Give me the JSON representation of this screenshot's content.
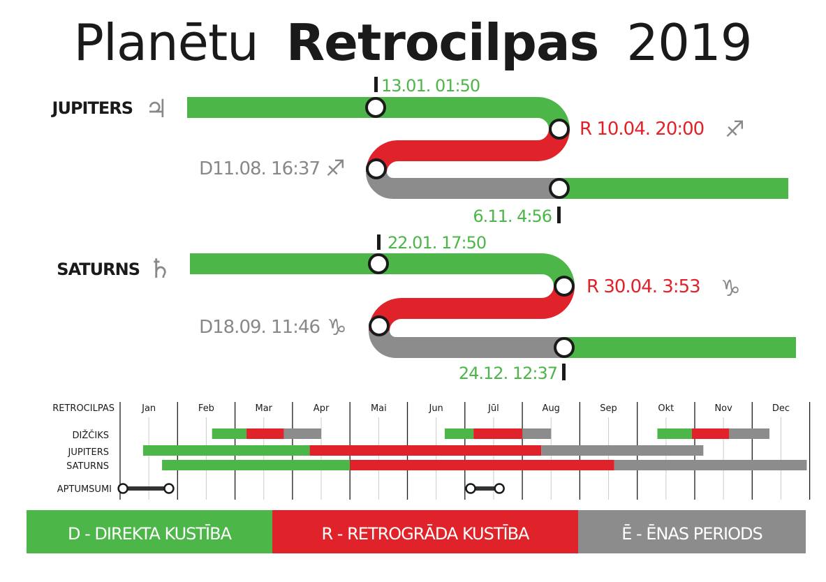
{
  "title": {
    "light": "Planētu",
    "bold": "Retrocilpas",
    "year": "2019"
  },
  "colors": {
    "direct": "#4cb648",
    "retro": "#e0222a",
    "shadow": "#8c8c8c",
    "text": "#1a1a1a",
    "muted": "#888888"
  },
  "loops": [
    {
      "name": "JUPITERS",
      "symbol": "♃",
      "start_label": "13.01. 01:50",
      "retro_label": "R 10.04. 20:00",
      "retro_sign": "♐",
      "direct_label": "D11.08. 16:37",
      "direct_sign": "♐",
      "end_label": "6.11. 4:56"
    },
    {
      "name": "SATURNS",
      "symbol": "♄",
      "start_label": "22.01. 17:50",
      "retro_label": "R 30.04. 3:53",
      "retro_sign": "♑",
      "direct_label": "D18.09. 11:46",
      "direct_sign": "♑",
      "end_label": "24.12. 12:37"
    }
  ],
  "timeline": {
    "header_label": "RETROCILPAS",
    "months": [
      "Jan",
      "Feb",
      "Mar",
      "Apr",
      "Mai",
      "Jun",
      "Jūl",
      "Aug",
      "Sep",
      "Okt",
      "Nov",
      "Dec"
    ],
    "rows": [
      {
        "label": "DIŽČIKS",
        "segments": [
          {
            "start": 2.6,
            "end": 3.2,
            "phase": "direct"
          },
          {
            "start": 3.2,
            "end": 3.85,
            "phase": "retro"
          },
          {
            "start": 3.85,
            "end": 4.5,
            "phase": "shadow"
          },
          {
            "start": 6.65,
            "end": 7.15,
            "phase": "direct"
          },
          {
            "start": 7.15,
            "end": 8.0,
            "phase": "retro"
          },
          {
            "start": 8.0,
            "end": 8.5,
            "phase": "shadow"
          },
          {
            "start": 10.35,
            "end": 10.95,
            "phase": "direct"
          },
          {
            "start": 10.95,
            "end": 11.6,
            "phase": "retro"
          },
          {
            "start": 11.6,
            "end": 12.3,
            "phase": "shadow"
          }
        ]
      },
      {
        "label": "JUPITERS",
        "segments": [
          {
            "start": 1.4,
            "end": 4.3,
            "phase": "direct"
          },
          {
            "start": 4.3,
            "end": 8.33,
            "phase": "retro"
          },
          {
            "start": 8.33,
            "end": 11.15,
            "phase": "shadow"
          }
        ]
      },
      {
        "label": "SATURNS",
        "segments": [
          {
            "start": 1.73,
            "end": 5.0,
            "phase": "direct"
          },
          {
            "start": 5.0,
            "end": 9.6,
            "phase": "retro"
          },
          {
            "start": 9.6,
            "end": 12.95,
            "phase": "shadow"
          }
        ]
      }
    ],
    "eclipses_label": "APTUMSUMI",
    "eclipses": [
      {
        "start": 1.05,
        "end": 1.85
      },
      {
        "start": 7.1,
        "end": 7.6
      }
    ]
  },
  "legend": [
    {
      "text": "D - DIREKTA KUSTĪBA",
      "phase": "direct"
    },
    {
      "text": "R - RETROGRĀDA KUSTĪBA",
      "phase": "retro"
    },
    {
      "text": "Ē -  ĒNAS PERIODS",
      "phase": "shadow"
    }
  ]
}
